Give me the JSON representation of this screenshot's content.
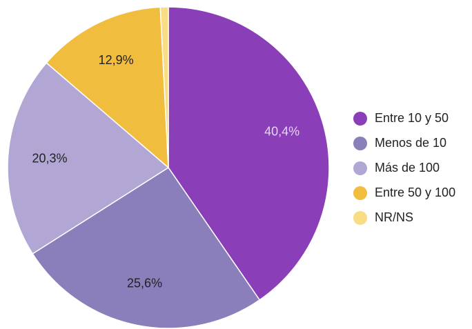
{
  "chart_data": {
    "type": "pie",
    "title": "",
    "legend_position": "right",
    "slices": [
      {
        "label": "Entre 10 y 50",
        "value": 40.4,
        "display": "40,4%",
        "color": "#8a3fb8",
        "label_color": "#e6d6f3"
      },
      {
        "label": "Menos de 10",
        "value": 25.6,
        "display": "25,6%",
        "color": "#8b7fbb",
        "label_color": "#222222"
      },
      {
        "label": "Más de 100",
        "value": 20.3,
        "display": "20,3%",
        "color": "#b1a6d4",
        "label_color": "#222222"
      },
      {
        "label": "Entre 50 y 100",
        "value": 12.9,
        "display": "12,9%",
        "color": "#f0bd3e",
        "label_color": "#222222"
      },
      {
        "label": "NR/NS",
        "value": 0.8,
        "display": "",
        "color": "#f9dd85",
        "label_color": "#222222"
      }
    ]
  }
}
